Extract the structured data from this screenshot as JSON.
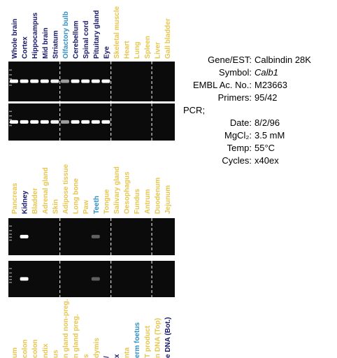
{
  "panel1": {
    "lanes": [
      "Whole brain",
      "Cortex",
      "Hippocampus",
      "Mid brain",
      "Striatum",
      "Olfactory bulb",
      "Cerebellum",
      "Spinal cord",
      "Pituitary gland",
      "Eye",
      "Skeletal muscle",
      "Heart",
      "Lung",
      "Spleen",
      "Liver",
      "Gall bladder"
    ]
  },
  "info": {
    "rows": [
      {
        "label": "Gene/EST:",
        "value": "Calbindin 28K"
      },
      {
        "label": "Symbol:",
        "value": "Calb1"
      },
      {
        "label": "EMBL Ac. No.:",
        "value": "M23663"
      },
      {
        "label": "Primers:",
        "value": "95/42"
      }
    ],
    "pcr": "PCR;",
    "pcr_rows": [
      {
        "label": "Date:",
        "value": "8/2/96"
      },
      {
        "label": "MgCl₂:",
        "value": "3.5 mM"
      },
      {
        "label": "Temp:",
        "value": "55°C"
      },
      {
        "label": "Cycles:",
        "value": "x40ex"
      }
    ]
  },
  "panel2": {
    "lanes": [
      "Pancreas",
      "Kidney",
      "Bladder",
      "Adrenal gland",
      "Skin",
      "Adipose tissue",
      "Long bone",
      "Paw",
      "Teeth",
      "Tongue",
      "Salivary gland",
      "Oesophagus",
      "Fundus",
      "Antrum",
      "Duodenum",
      "Jejunum"
    ]
  },
  "panel3": {
    "lanes": [
      "um",
      "colon",
      "colon",
      "ndix",
      "us",
      "n gland non-preg.",
      "n gland preg.",
      "s",
      "dymis",
      "/",
      "x",
      "nta",
      "erm foetus",
      "T product",
      "n DNA (Top)",
      "e DNA (Bot.)"
    ]
  }
}
